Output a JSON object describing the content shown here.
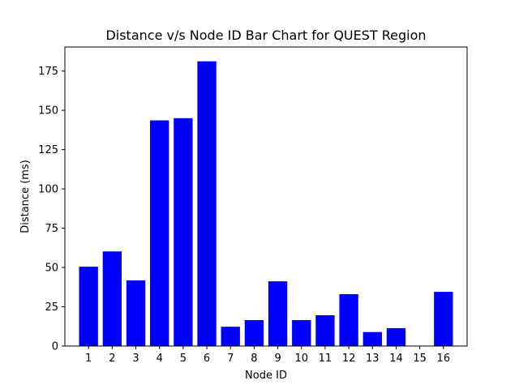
{
  "chart_data": {
    "type": "bar",
    "title": "Distance v/s Node ID Bar Chart for QUEST Region",
    "xlabel": "Node ID",
    "ylabel": "Distance (ms)",
    "categories": [
      "1",
      "2",
      "3",
      "4",
      "5",
      "6",
      "7",
      "8",
      "9",
      "10",
      "11",
      "12",
      "13",
      "14",
      "15",
      "16"
    ],
    "values": [
      50.5,
      60.2,
      41.8,
      143.6,
      145.0,
      181.2,
      12.3,
      16.5,
      41.2,
      16.5,
      19.6,
      33.0,
      8.9,
      11.4,
      0,
      34.5
    ],
    "ylim": [
      0,
      190.3
    ],
    "yticks": [
      0,
      25,
      50,
      75,
      100,
      125,
      150,
      175
    ],
    "bar_color": "#0000ff",
    "grid": false
  }
}
